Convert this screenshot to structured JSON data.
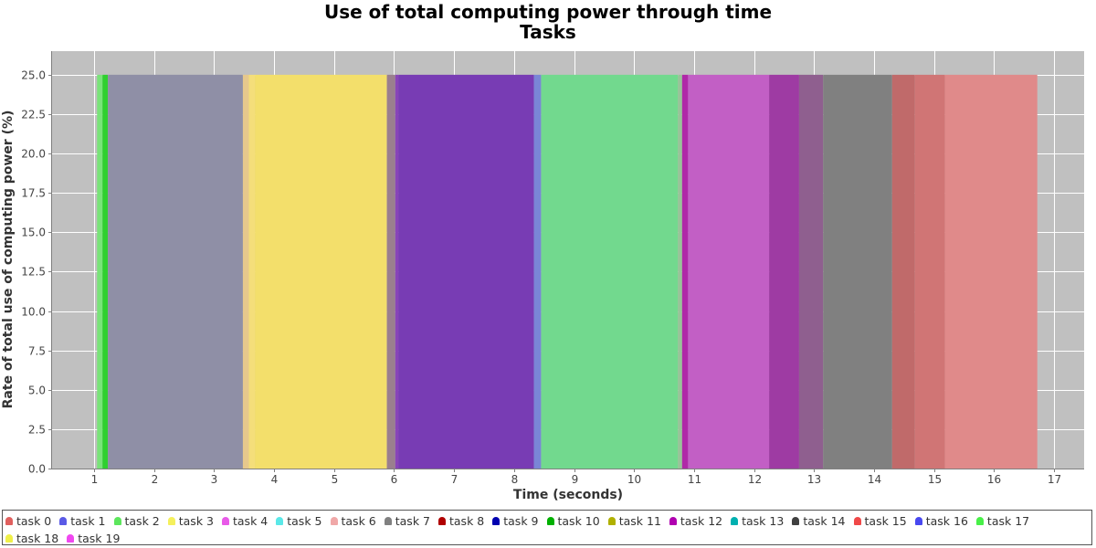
{
  "chart_data": {
    "type": "area",
    "title": "Use of total computing power through time",
    "subtitle": "Tasks",
    "xlabel": "Time (seconds)",
    "ylabel": "Rate of total use of computing power (%)",
    "xlim": [
      0.3,
      17.5
    ],
    "ylim": [
      0,
      26.5
    ],
    "x_ticks": [
      "1",
      "2",
      "3",
      "4",
      "5",
      "6",
      "7",
      "8",
      "9",
      "10",
      "11",
      "12",
      "13",
      "14",
      "15",
      "16",
      "17"
    ],
    "y_ticks": [
      "0.0",
      "2.5",
      "5.0",
      "7.5",
      "10.0",
      "12.5",
      "15.0",
      "17.5",
      "20.0",
      "22.5",
      "25.0"
    ],
    "grid": true,
    "legend_position": "bottom",
    "series": [
      {
        "name": "task 0",
        "color": "#e0605e",
        "blocks": []
      },
      {
        "name": "task 1",
        "color": "#5a5ae6",
        "blocks": []
      },
      {
        "name": "task 2",
        "color": "#5ce65c",
        "blocks": []
      },
      {
        "name": "task 3",
        "color": "#f5f05c",
        "blocks": []
      },
      {
        "name": "task 4",
        "color": "#e85ae8",
        "blocks": []
      },
      {
        "name": "task 5",
        "color": "#5ae8e8",
        "blocks": []
      },
      {
        "name": "task 6",
        "color": "#f0a8a8",
        "blocks": []
      },
      {
        "name": "task 7",
        "color": "#808080",
        "blocks": []
      },
      {
        "name": "task 8",
        "color": "#b00000",
        "blocks": []
      },
      {
        "name": "task 9",
        "color": "#0000b0",
        "blocks": []
      },
      {
        "name": "task 10",
        "color": "#00b000",
        "blocks": []
      },
      {
        "name": "task 11",
        "color": "#b0b000",
        "blocks": []
      },
      {
        "name": "task 12",
        "color": "#b000b0",
        "blocks": []
      },
      {
        "name": "task 13",
        "color": "#00b0b0",
        "blocks": []
      },
      {
        "name": "task 14",
        "color": "#404040",
        "blocks": []
      },
      {
        "name": "task 15",
        "color": "#f04848",
        "blocks": []
      },
      {
        "name": "task 16",
        "color": "#4848f0",
        "blocks": []
      },
      {
        "name": "task 17",
        "color": "#48f048",
        "blocks": []
      },
      {
        "name": "task 18",
        "color": "#f0f048",
        "blocks": []
      },
      {
        "name": "task 19",
        "color": "#f048f0",
        "blocks": []
      }
    ],
    "bands": [
      {
        "start": 1.05,
        "end": 1.14,
        "value": 25,
        "color": "#79e379"
      },
      {
        "start": 1.14,
        "end": 1.23,
        "value": 25,
        "color": "#2fd02f"
      },
      {
        "start": 1.23,
        "end": 3.48,
        "value": 25,
        "color": "#8f8fa6"
      },
      {
        "start": 3.48,
        "end": 3.58,
        "value": 25,
        "color": "#e6c88c"
      },
      {
        "start": 3.58,
        "end": 3.68,
        "value": 25,
        "color": "#f4de7a"
      },
      {
        "start": 3.68,
        "end": 5.88,
        "value": 25,
        "color": "#f3df6b"
      },
      {
        "start": 5.88,
        "end": 6.02,
        "value": 25,
        "color": "#9a7f8e"
      },
      {
        "start": 6.02,
        "end": 6.07,
        "value": 25,
        "color": "#8844b8"
      },
      {
        "start": 6.07,
        "end": 8.33,
        "value": 25,
        "color": "#783cb4"
      },
      {
        "start": 8.33,
        "end": 8.45,
        "value": 25,
        "color": "#7a86d6"
      },
      {
        "start": 8.45,
        "end": 10.73,
        "value": 25,
        "color": "#72d98e"
      },
      {
        "start": 10.73,
        "end": 10.8,
        "value": 25,
        "color": "#98c498"
      },
      {
        "start": 10.8,
        "end": 10.9,
        "value": 25,
        "color": "#b028a8"
      },
      {
        "start": 10.9,
        "end": 12.25,
        "value": 25,
        "color": "#c25fc5"
      },
      {
        "start": 12.25,
        "end": 12.75,
        "value": 25,
        "color": "#9e3ba3"
      },
      {
        "start": 12.75,
        "end": 13.15,
        "value": 25,
        "color": "#8f5f8f"
      },
      {
        "start": 13.15,
        "end": 14.3,
        "value": 25,
        "color": "#808080"
      },
      {
        "start": 14.3,
        "end": 14.68,
        "value": 25,
        "color": "#c06a6a"
      },
      {
        "start": 14.68,
        "end": 15.18,
        "value": 25,
        "color": "#d07575"
      },
      {
        "start": 15.18,
        "end": 16.72,
        "value": 25,
        "color": "#e08a8a"
      }
    ]
  }
}
